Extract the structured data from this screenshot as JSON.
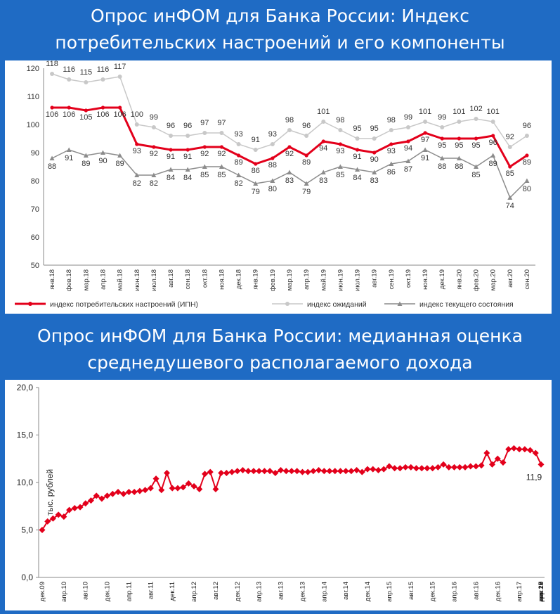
{
  "header_top": {
    "line1": "Опрос инФОМ для Банка России: Индекс",
    "line2": "потребительских настроений и его компоненты"
  },
  "header_bottom": {
    "line1": "Опрос инФОМ для Банка России: медианная оценка",
    "line2": "среднедушевого располагаемого дохода"
  },
  "chart_data": [
    {
      "type": "line",
      "categories": [
        "янв.18",
        "фев.18",
        "мар.18",
        "апр.18",
        "май.18",
        "июн.18",
        "июл.18",
        "авг.18",
        "сен.18",
        "окт.18",
        "ноя.18",
        "дек.18",
        "янв.19",
        "фев.19",
        "мар.19",
        "апр.19",
        "май.19",
        "июн.19",
        "июл.19",
        "авг.19",
        "сен.19",
        "окт.19",
        "ноя.19",
        "дек.19",
        "янв.20",
        "фев.20",
        "мар.20",
        "авг.20",
        "сен.20"
      ],
      "ylim": [
        50,
        120
      ],
      "yticks": [
        50,
        60,
        70,
        80,
        90,
        100,
        110,
        120
      ],
      "grid": false,
      "legend_position": "bottom",
      "series": [
        {
          "name": "индекс потребительских настроений (ИПН)",
          "color": "#e3001b",
          "values": [
            106,
            106,
            105,
            106,
            106,
            93,
            92,
            91,
            91,
            92,
            92,
            89,
            86,
            88,
            92,
            89,
            94,
            93,
            91,
            90,
            93,
            94,
            97,
            95,
            95,
            95,
            96,
            85,
            89
          ]
        },
        {
          "name": "индекс ожиданий",
          "color": "#c8c8c8",
          "values": [
            118,
            116,
            115,
            116,
            117,
            100,
            99,
            96,
            96,
            97,
            97,
            93,
            91,
            93,
            98,
            96,
            101,
            98,
            95,
            95,
            98,
            99,
            101,
            99,
            101,
            102,
            101,
            92,
            96
          ]
        },
        {
          "name": "индекс текущего состояния",
          "color": "#8c8c8c",
          "values": [
            88,
            91,
            89,
            90,
            89,
            82,
            82,
            84,
            84,
            85,
            85,
            82,
            79,
            80,
            83,
            79,
            83,
            85,
            84,
            83,
            86,
            87,
            91,
            88,
            88,
            85,
            89,
            74,
            80
          ]
        }
      ]
    },
    {
      "type": "line",
      "ylabel": "тыс. рублей",
      "ylim": [
        0,
        20
      ],
      "yticks": [
        "0,0",
        "5,0",
        "10,0",
        "15,0",
        "20,0"
      ],
      "grid": false,
      "tick_labels": [
        "дек.09",
        "апр.10",
        "авг.10",
        "дек.10",
        "апр.11",
        "авг.11",
        "дек.11",
        "апр.12",
        "авг.12",
        "дек.12",
        "апр.13",
        "авг.13",
        "дек.13",
        "апр.14",
        "авг.14",
        "дек.14",
        "апр.15",
        "авг.15",
        "дек.15",
        "апр.16",
        "авг.16",
        "дек.16",
        "апр.17",
        "авг.17",
        "дек.17",
        "апр.18",
        "авг.18",
        "дек.18",
        "апр.19",
        "авг.19",
        "дек.19",
        "апр.20",
        "авг.20"
      ],
      "last_label": "11,9",
      "series": [
        {
          "color": "#e3001b",
          "values": [
            5.0,
            5.9,
            6.2,
            6.6,
            6.4,
            7.1,
            7.3,
            7.4,
            7.8,
            8.1,
            8.6,
            8.3,
            8.6,
            8.8,
            9.0,
            8.8,
            9.0,
            9.0,
            9.1,
            9.2,
            9.4,
            10.4,
            9.2,
            11.0,
            9.4,
            9.4,
            9.5,
            9.9,
            9.6,
            9.3,
            10.9,
            11.1,
            9.3,
            11.0,
            11.0,
            11.1,
            11.2,
            11.3,
            11.2,
            11.2,
            11.2,
            11.2,
            11.2,
            11.0,
            11.3,
            11.2,
            11.2,
            11.2,
            11.1,
            11.1,
            11.2,
            11.3,
            11.2,
            11.2,
            11.2,
            11.2,
            11.2,
            11.2,
            11.3,
            11.1,
            11.4,
            11.4,
            11.3,
            11.4,
            11.7,
            11.5,
            11.5,
            11.6,
            11.6,
            11.5,
            11.5,
            11.5,
            11.5,
            11.6,
            11.9,
            11.6,
            11.6,
            11.6,
            11.6,
            11.7,
            11.7,
            11.8,
            13.1,
            11.9,
            12.5,
            12.1,
            13.5,
            13.6,
            13.5,
            13.5,
            13.4,
            13.1,
            11.9
          ]
        }
      ]
    }
  ]
}
